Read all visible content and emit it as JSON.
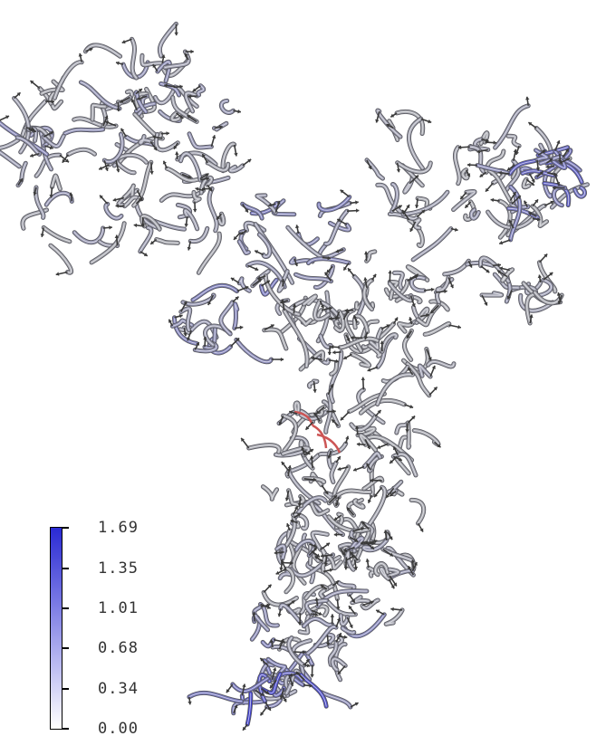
{
  "colorbar": {
    "min_color": "#ffffff",
    "max_color": "#2a2ad4",
    "tick_labels": [
      "1.69",
      "1.35",
      "1.01",
      "0.68",
      "0.34",
      "0.00"
    ]
  },
  "structure": {
    "backbone_color": "#a9aab0",
    "arrow_color": "#3a3a3a",
    "highlight_color": "#cc5555"
  }
}
